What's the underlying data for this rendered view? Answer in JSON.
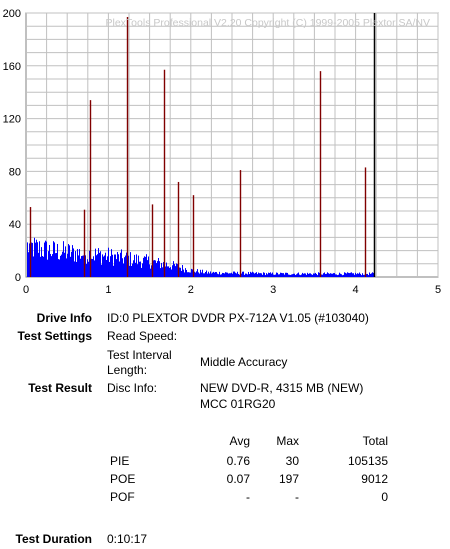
{
  "chart_data": {
    "type": "bar",
    "watermark": "PlexTools Professional V2.20 Copyright (C) 1999-2005 Plextor SA/NV",
    "xlim": [
      0,
      5
    ],
    "ylim": [
      0,
      200
    ],
    "x_ticks": [
      "0",
      "1",
      "2",
      "3",
      "4",
      "5"
    ],
    "y_ticks": [
      "0",
      "40",
      "80",
      "120",
      "160",
      "200"
    ],
    "grid": true,
    "pie_color": "#0000ff",
    "poe_color": "#800000",
    "end_marker_color": "#000000",
    "disc_end_x": 4.22,
    "pie_profile": [
      {
        "x": 0.0,
        "y": 28
      },
      {
        "x": 0.3,
        "y": 24
      },
      {
        "x": 0.6,
        "y": 22
      },
      {
        "x": 0.9,
        "y": 20
      },
      {
        "x": 1.2,
        "y": 17
      },
      {
        "x": 1.5,
        "y": 14
      },
      {
        "x": 1.8,
        "y": 10
      },
      {
        "x": 2.0,
        "y": 6
      },
      {
        "x": 2.2,
        "y": 4
      },
      {
        "x": 3.0,
        "y": 3
      },
      {
        "x": 4.2,
        "y": 3
      }
    ],
    "poe_spikes": [
      {
        "x": 0.05,
        "y": 53
      },
      {
        "x": 0.7,
        "y": 51
      },
      {
        "x": 0.78,
        "y": 134
      },
      {
        "x": 1.23,
        "y": 197
      },
      {
        "x": 1.53,
        "y": 55
      },
      {
        "x": 1.68,
        "y": 157
      },
      {
        "x": 1.85,
        "y": 72
      },
      {
        "x": 2.03,
        "y": 62
      },
      {
        "x": 2.6,
        "y": 81
      },
      {
        "x": 3.57,
        "y": 156
      },
      {
        "x": 4.12,
        "y": 83
      }
    ]
  },
  "report": {
    "drive_info_label": "Drive Info",
    "drive_info_value": "ID:0 PLEXTOR DVDR PX-712A V1.05 (#103040)",
    "test_settings_label": "Test Settings",
    "read_speed_label": "Read Speed:",
    "read_speed_value": "",
    "interval_label_1": "Test Interval",
    "interval_label_2": "Length:",
    "interval_value": "Middle Accuracy",
    "test_result_label": "Test Result",
    "disc_info_label": "Disc Info:",
    "disc_info_line1": "NEW DVD-R, 4315 MB (NEW)",
    "disc_info_line2": "MCC 01RG20",
    "col_avg": "Avg",
    "col_max": "Max",
    "col_total": "Total",
    "rows": [
      {
        "name": "PIE",
        "avg": "0.76",
        "max": "30",
        "total": "105135"
      },
      {
        "name": "POE",
        "avg": "0.07",
        "max": "197",
        "total": "9012"
      },
      {
        "name": "POF",
        "avg": "-",
        "max": "-",
        "total": "0"
      }
    ],
    "duration_label": "Test Duration",
    "duration_value": "0:10:17"
  }
}
